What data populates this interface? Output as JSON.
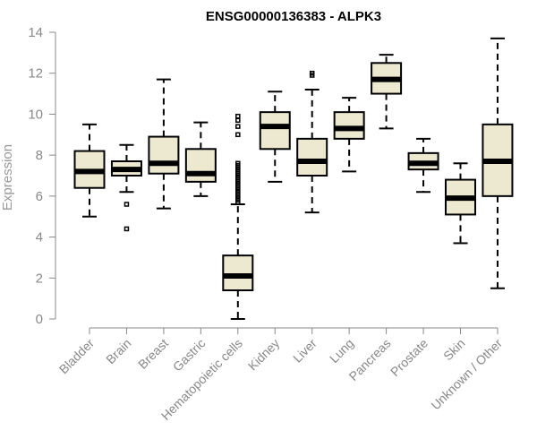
{
  "chart_data": {
    "type": "box",
    "title": "ENSG00000136383 - ALPK3",
    "xlabel": "",
    "ylabel": "Expression",
    "ylim": [
      0,
      14
    ],
    "yticks": [
      0,
      2,
      4,
      6,
      8,
      10,
      12,
      14
    ],
    "grid": false,
    "colors": {
      "box_fill": "#ede8d0",
      "median": "#000000",
      "axis": "#888888",
      "text": "#888888"
    },
    "categories": [
      "Bladder",
      "Brain",
      "Breast",
      "Gastric",
      "Hematopoietic cells",
      "Kidney",
      "Liver",
      "Lung",
      "Pancreas",
      "Prostate",
      "Skin",
      "Unknown / Other"
    ],
    "boxes": [
      {
        "category": "Bladder",
        "whisker_low": 5.0,
        "q1": 6.4,
        "median": 7.2,
        "q3": 8.2,
        "whisker_high": 9.5,
        "outliers": []
      },
      {
        "category": "Brain",
        "whisker_low": 6.2,
        "q1": 7.0,
        "median": 7.3,
        "q3": 7.7,
        "whisker_high": 8.5,
        "outliers": [
          5.6,
          4.4
        ]
      },
      {
        "category": "Breast",
        "whisker_low": 5.4,
        "q1": 7.1,
        "median": 7.6,
        "q3": 8.9,
        "whisker_high": 11.7,
        "outliers": []
      },
      {
        "category": "Gastric",
        "whisker_low": 6.0,
        "q1": 6.7,
        "median": 7.1,
        "q3": 8.3,
        "whisker_high": 9.6,
        "outliers": []
      },
      {
        "category": "Hematopoietic cells",
        "whisker_low": 0.0,
        "q1": 1.4,
        "median": 2.1,
        "q3": 3.1,
        "whisker_high": 5.6,
        "outliers": [
          5.7,
          5.8,
          5.9,
          6.0,
          6.1,
          6.2,
          6.3,
          6.4,
          6.5,
          6.6,
          6.7,
          6.8,
          6.9,
          7.0,
          7.1,
          7.2,
          7.3,
          7.4,
          7.5,
          7.6,
          9.0,
          9.4,
          9.7,
          9.9
        ]
      },
      {
        "category": "Kidney",
        "whisker_low": 6.7,
        "q1": 8.3,
        "median": 9.4,
        "q3": 10.1,
        "whisker_high": 11.1,
        "outliers": []
      },
      {
        "category": "Liver",
        "whisker_low": 5.2,
        "q1": 7.0,
        "median": 7.7,
        "q3": 8.8,
        "whisker_high": 11.2,
        "outliers": [
          11.9,
          12.0
        ]
      },
      {
        "category": "Lung",
        "whisker_low": 7.2,
        "q1": 8.8,
        "median": 9.3,
        "q3": 10.1,
        "whisker_high": 10.8,
        "outliers": []
      },
      {
        "category": "Pancreas",
        "whisker_low": 9.3,
        "q1": 11.0,
        "median": 11.7,
        "q3": 12.5,
        "whisker_high": 12.9,
        "outliers": []
      },
      {
        "category": "Prostate",
        "whisker_low": 6.2,
        "q1": 7.3,
        "median": 7.6,
        "q3": 8.1,
        "whisker_high": 8.8,
        "outliers": []
      },
      {
        "category": "Skin",
        "whisker_low": 3.7,
        "q1": 5.1,
        "median": 5.9,
        "q3": 6.8,
        "whisker_high": 7.6,
        "outliers": []
      },
      {
        "category": "Unknown / Other",
        "whisker_low": 1.5,
        "q1": 6.0,
        "median": 7.7,
        "q3": 9.5,
        "whisker_high": 13.7,
        "outliers": []
      }
    ]
  }
}
